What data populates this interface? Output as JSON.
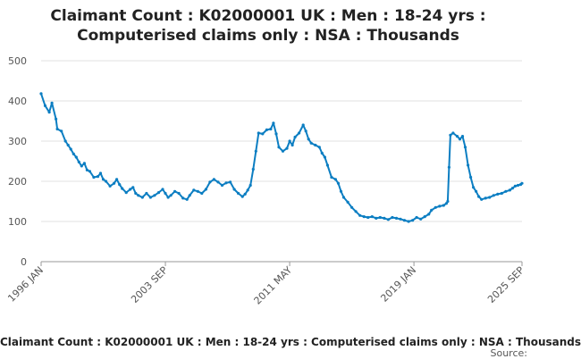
{
  "chart_data": {
    "type": "line",
    "title_line1": "Claimant Count : K02000001 UK : Men : 18-24 yrs :",
    "title_line2": "Computerised claims only : NSA : Thousands",
    "footer_title": "Claimant Count : K02000001 UK : Men : 18-24 yrs : Computerised claims only : NSA : Thousands",
    "source_label": "Source:",
    "ylim": [
      0,
      500
    ],
    "y_ticks": [
      0,
      100,
      200,
      300,
      400,
      500
    ],
    "xlim": [
      "1996-01",
      "2025-09"
    ],
    "x_ticks": [
      "1996 JAN",
      "2003 SEP",
      "2011 MAY",
      "2019 JAN",
      "2025 SEP"
    ],
    "x_tick_dates": [
      "1996-01",
      "2003-09",
      "2011-05",
      "2019-01",
      "2025-09"
    ],
    "grid": "horizontal",
    "color": "#0c7ec2",
    "series": [
      {
        "points": [
          [
            "1996-01",
            418
          ],
          [
            "1996-04",
            388
          ],
          [
            "1996-07",
            372
          ],
          [
            "1996-09",
            395
          ],
          [
            "1996-12",
            355
          ],
          [
            "1997-01",
            330
          ],
          [
            "1997-04",
            325
          ],
          [
            "1997-07",
            300
          ],
          [
            "1997-09",
            290
          ],
          [
            "1997-11",
            280
          ],
          [
            "1998-01",
            268
          ],
          [
            "1998-03",
            260
          ],
          [
            "1998-05",
            248
          ],
          [
            "1998-07",
            238
          ],
          [
            "1998-09",
            245
          ],
          [
            "1998-11",
            228
          ],
          [
            "1999-01",
            225
          ],
          [
            "1999-04",
            210
          ],
          [
            "1999-07",
            212
          ],
          [
            "1999-09",
            220
          ],
          [
            "1999-11",
            205
          ],
          [
            "2000-01",
            200
          ],
          [
            "2000-04",
            188
          ],
          [
            "2000-07",
            195
          ],
          [
            "2000-09",
            205
          ],
          [
            "2000-11",
            192
          ],
          [
            "2001-01",
            182
          ],
          [
            "2001-04",
            172
          ],
          [
            "2001-07",
            180
          ],
          [
            "2001-09",
            185
          ],
          [
            "2001-11",
            170
          ],
          [
            "2002-01",
            165
          ],
          [
            "2002-04",
            160
          ],
          [
            "2002-07",
            170
          ],
          [
            "2002-10",
            160
          ],
          [
            "2003-01",
            165
          ],
          [
            "2003-04",
            172
          ],
          [
            "2003-07",
            180
          ],
          [
            "2003-09",
            170
          ],
          [
            "2003-11",
            160
          ],
          [
            "2004-01",
            165
          ],
          [
            "2004-04",
            175
          ],
          [
            "2004-07",
            170
          ],
          [
            "2004-10",
            158
          ],
          [
            "2005-01",
            155
          ],
          [
            "2005-03",
            165
          ],
          [
            "2005-06",
            178
          ],
          [
            "2005-09",
            175
          ],
          [
            "2005-12",
            170
          ],
          [
            "2006-03",
            180
          ],
          [
            "2006-06",
            198
          ],
          [
            "2006-09",
            205
          ],
          [
            "2006-12",
            198
          ],
          [
            "2007-03",
            190
          ],
          [
            "2007-06",
            196
          ],
          [
            "2007-09",
            198
          ],
          [
            "2007-12",
            180
          ],
          [
            "2008-03",
            170
          ],
          [
            "2008-06",
            162
          ],
          [
            "2008-08",
            168
          ],
          [
            "2008-10",
            178
          ],
          [
            "2008-12",
            190
          ],
          [
            "2009-02",
            230
          ],
          [
            "2009-04",
            275
          ],
          [
            "2009-06",
            320
          ],
          [
            "2009-09",
            318
          ],
          [
            "2009-12",
            328
          ],
          [
            "2010-03",
            330
          ],
          [
            "2010-05",
            345
          ],
          [
            "2010-07",
            318
          ],
          [
            "2010-09",
            285
          ],
          [
            "2010-12",
            275
          ],
          [
            "2011-03",
            282
          ],
          [
            "2011-05",
            300
          ],
          [
            "2011-07",
            290
          ],
          [
            "2011-09",
            310
          ],
          [
            "2011-12",
            320
          ],
          [
            "2012-03",
            340
          ],
          [
            "2012-05",
            325
          ],
          [
            "2012-07",
            305
          ],
          [
            "2012-09",
            295
          ],
          [
            "2012-12",
            290
          ],
          [
            "2013-03",
            285
          ],
          [
            "2013-05",
            270
          ],
          [
            "2013-07",
            260
          ],
          [
            "2013-09",
            240
          ],
          [
            "2013-12",
            210
          ],
          [
            "2014-03",
            205
          ],
          [
            "2014-05",
            195
          ],
          [
            "2014-07",
            175
          ],
          [
            "2014-09",
            160
          ],
          [
            "2014-12",
            148
          ],
          [
            "2015-03",
            135
          ],
          [
            "2015-06",
            125
          ],
          [
            "2015-09",
            115
          ],
          [
            "2015-12",
            112
          ],
          [
            "2016-03",
            110
          ],
          [
            "2016-06",
            112
          ],
          [
            "2016-09",
            108
          ],
          [
            "2016-12",
            110
          ],
          [
            "2017-03",
            108
          ],
          [
            "2017-06",
            105
          ],
          [
            "2017-09",
            110
          ],
          [
            "2017-12",
            108
          ],
          [
            "2018-03",
            106
          ],
          [
            "2018-06",
            103
          ],
          [
            "2018-09",
            100
          ],
          [
            "2018-12",
            103
          ],
          [
            "2019-03",
            110
          ],
          [
            "2019-06",
            106
          ],
          [
            "2019-09",
            112
          ],
          [
            "2019-12",
            118
          ],
          [
            "2020-02",
            128
          ],
          [
            "2020-05",
            135
          ],
          [
            "2020-08",
            138
          ],
          [
            "2020-11",
            140
          ],
          [
            "2021-01",
            145
          ],
          [
            "2021-02",
            150
          ],
          [
            "2021-03",
            235
          ],
          [
            "2021-04",
            315
          ],
          [
            "2021-06",
            320
          ],
          [
            "2021-09",
            312
          ],
          [
            "2021-11",
            305
          ],
          [
            "2022-01",
            312
          ],
          [
            "2022-03",
            285
          ],
          [
            "2022-05",
            240
          ],
          [
            "2022-07",
            210
          ],
          [
            "2022-09",
            185
          ],
          [
            "2022-11",
            175
          ],
          [
            "2023-01",
            162
          ],
          [
            "2023-03",
            155
          ],
          [
            "2023-06",
            158
          ],
          [
            "2023-09",
            160
          ],
          [
            "2023-12",
            165
          ],
          [
            "2024-03",
            168
          ],
          [
            "2024-06",
            170
          ],
          [
            "2024-09",
            175
          ],
          [
            "2024-12",
            178
          ],
          [
            "2025-02",
            183
          ],
          [
            "2025-04",
            188
          ],
          [
            "2025-06",
            190
          ],
          [
            "2025-08",
            192
          ],
          [
            "2025-09",
            195
          ]
        ]
      }
    ]
  }
}
